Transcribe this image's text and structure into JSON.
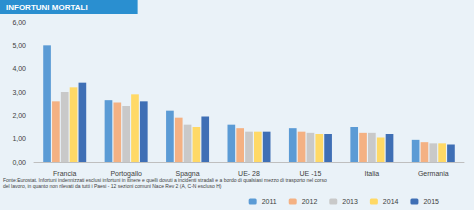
{
  "chart_data": {
    "type": "bar",
    "title": "INFORTUNI MORTALI",
    "annotations": [
      "Fonte:Eurostat. Infortuni indennizzati esclusi infortuni in itinere e quelli dovuti a incidenti stradali e a bordo di qualsiasi mezzo di trasporto nel corso del lavoro, in quanto non rilevati da tutti i Paesi - 12 sezioni comuni Nace Rev 2 (A, C-N escluso H)"
    ],
    "categories": [
      "Francia",
      "Portogallo",
      "Spagna",
      "UE- 28",
      "UE -15",
      "Italia",
      "Germania"
    ],
    "series": [
      {
        "name": "2011",
        "color": "#5b9bd5",
        "values": [
          5.0,
          2.65,
          2.2,
          1.6,
          1.45,
          1.5,
          0.95
        ]
      },
      {
        "name": "2012",
        "color": "#f4b183",
        "values": [
          2.6,
          2.55,
          1.9,
          1.45,
          1.3,
          1.25,
          0.85
        ]
      },
      {
        "name": "2013",
        "color": "#c9c9c9",
        "values": [
          3.0,
          2.4,
          1.6,
          1.3,
          1.25,
          1.25,
          0.8
        ]
      },
      {
        "name": "2014",
        "color": "#ffd966",
        "values": [
          3.2,
          2.9,
          1.5,
          1.3,
          1.2,
          1.05,
          0.8
        ]
      },
      {
        "name": "2015",
        "color": "#3f6fb5",
        "values": [
          3.4,
          2.6,
          1.95,
          1.3,
          1.2,
          1.2,
          0.75
        ]
      }
    ],
    "ylim": [
      0,
      6
    ],
    "yticks": [
      {
        "value": 0,
        "label": "0,00"
      },
      {
        "value": 1,
        "label": "1,00"
      },
      {
        "value": 2,
        "label": "2,00"
      },
      {
        "value": 3,
        "label": "3,00"
      },
      {
        "value": 4,
        "label": "4,00"
      },
      {
        "value": 5,
        "label": "5,00"
      },
      {
        "value": 6,
        "label": "6,00"
      }
    ],
    "grid": false,
    "legend": "bottom"
  }
}
